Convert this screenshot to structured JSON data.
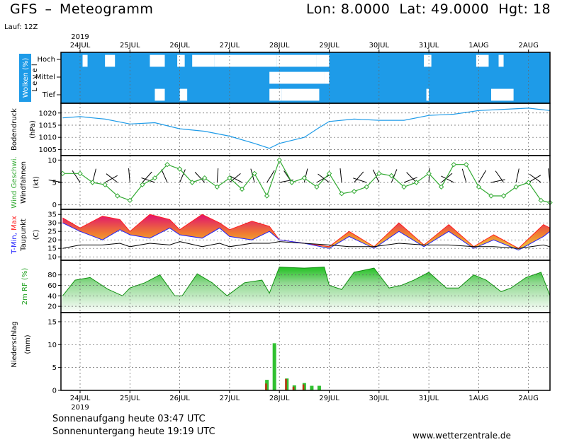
{
  "header": {
    "model": "GFS",
    "dash": "–",
    "product": "Meteogramm",
    "coords": "Lon: 8.0000  Lat: 49.0000  Hgt: 18",
    "run": "Lauf: 12Z"
  },
  "footer": {
    "sunrise": "Sonnenaufgang heute 03:47 UTC",
    "sunset": "Sonnenuntergang heute 19:19 UTC",
    "source": "www.wetterzentrale.de"
  },
  "time_axis": {
    "year": "2019",
    "days": [
      "24JUL",
      "25JUL",
      "26JUL",
      "27JUL",
      "28JUL",
      "29JUL",
      "30JUL",
      "31JUL",
      "1AUG",
      "2AUG"
    ],
    "range_days": [
      -0.35,
      9.5
    ]
  },
  "colors": {
    "cloud_blue": "#1e9be8",
    "pressure_line": "#1e9be8",
    "wind_green": "#33aa33",
    "tmax_red": "#ff2020",
    "tmin_blue": "#2020ff",
    "temp_fill_low": "#f0c020",
    "temp_fill_high": "#e02070",
    "rh_green": "#30c030",
    "rain_green": "#30c030",
    "rain_red": "#c03010"
  },
  "chart_data": [
    {
      "type": "heatmap",
      "panel": "clouds",
      "ylabel": "Wolken (%)",
      "ylabel2": "L e v e l",
      "levels": [
        "Hoch",
        "Mittel",
        "Tief"
      ],
      "note": "mostly fully cloudy (blue); white gaps = clear",
      "clear_intervals": {
        "Hoch": [
          [
            0.05,
            0.15
          ],
          [
            0.5,
            0.7
          ],
          [
            1.4,
            1.7
          ],
          [
            1.95,
            2.1
          ],
          [
            2.25,
            2.7
          ],
          [
            2.7,
            3.95
          ],
          [
            3.95,
            4.75
          ],
          [
            4.75,
            5.0
          ],
          [
            6.9,
            7.05
          ],
          [
            7.95,
            8.2
          ],
          [
            8.4,
            8.5
          ]
        ],
        "Mittel": [
          [
            3.8,
            4.0
          ],
          [
            4.0,
            4.9
          ],
          [
            4.9,
            5.0
          ]
        ],
        "Tief": [
          [
            1.5,
            1.7
          ],
          [
            2.0,
            2.15
          ],
          [
            3.8,
            4.05
          ],
          [
            4.05,
            4.8
          ],
          [
            6.95,
            7.0
          ],
          [
            8.25,
            8.7
          ]
        ]
      }
    },
    {
      "type": "line",
      "panel": "pressure",
      "ylabel": "Bodendruck",
      "unit": "(hPa)",
      "ylim": [
        1002.5,
        1024
      ],
      "yticks": [
        1005,
        1010,
        1015,
        1020
      ],
      "x": [
        -0.35,
        0,
        0.5,
        1,
        1.5,
        2,
        2.5,
        3,
        3.5,
        3.8,
        4,
        4.5,
        4.8,
        5,
        5.5,
        6,
        6.5,
        7,
        7.5,
        8,
        8.5,
        9,
        9.5
      ],
      "values": [
        1018,
        1018.5,
        1017.5,
        1015.5,
        1016,
        1013.5,
        1012.5,
        1010.5,
        1007.5,
        1005.5,
        1007.5,
        1010,
        1014,
        1016.5,
        1017.5,
        1017,
        1017,
        1019,
        1019.5,
        1021,
        1021.5,
        1022,
        1021
      ]
    },
    {
      "type": "line",
      "panel": "wind",
      "ylabel": "Wind Geschwi.",
      "ylabel2": "Windfahnen",
      "unit": "(kt)",
      "ylim": [
        -1,
        11
      ],
      "yticks": [
        0,
        5,
        10
      ],
      "x": [
        -0.35,
        0,
        0.25,
        0.5,
        0.75,
        1,
        1.25,
        1.5,
        1.75,
        2,
        2.25,
        2.5,
        2.75,
        3,
        3.25,
        3.5,
        3.75,
        4,
        4.25,
        4.5,
        4.75,
        5,
        5.25,
        5.5,
        5.75,
        6,
        6.25,
        6.5,
        6.75,
        7,
        7.25,
        7.5,
        7.75,
        8,
        8.25,
        8.5,
        8.75,
        9,
        9.25,
        9.5
      ],
      "values": [
        7,
        7,
        5,
        4.5,
        2,
        1,
        4.5,
        6,
        9,
        8,
        5,
        6,
        4,
        6,
        3.5,
        7,
        2,
        10,
        5,
        6,
        4,
        7,
        2.5,
        3,
        4,
        7,
        6.5,
        4,
        5,
        7,
        4,
        9,
        9,
        4,
        2,
        2,
        4,
        5,
        1,
        0.5
      ]
    },
    {
      "type": "area",
      "panel": "temperature",
      "ylabel_min": "T-Min,",
      "ylabel_max": "Max",
      "ylabel2": "Taupunkt",
      "unit": "(C)",
      "ylim": [
        8,
        38
      ],
      "yticks": [
        10,
        15,
        20,
        25,
        30,
        35
      ],
      "x": [
        -0.35,
        0,
        0.45,
        0.8,
        1.0,
        1.4,
        1.8,
        2.0,
        2.45,
        2.8,
        3.0,
        3.45,
        3.8,
        4.0,
        4.5,
        5.0,
        5.4,
        5.9,
        6.4,
        6.9,
        7.4,
        7.9,
        8.3,
        8.8,
        9.3,
        9.5
      ],
      "tmax": [
        33,
        27,
        34,
        26,
        25,
        35,
        27,
        26,
        35,
        27,
        26,
        31,
        25,
        20,
        18,
        16,
        25,
        16,
        30,
        17,
        29,
        16,
        23,
        15,
        29,
        27
      ],
      "tmin": [
        30,
        25,
        20,
        32,
        23,
        21,
        32,
        23,
        21,
        30,
        22,
        20,
        28,
        20,
        18,
        15,
        22,
        15,
        25,
        16,
        25,
        15,
        20,
        14,
        22,
        25
      ],
      "dewpoint": [
        15,
        17,
        17,
        18,
        16,
        18,
        17,
        19,
        16,
        18,
        16,
        18,
        18,
        19,
        18,
        17,
        16,
        16,
        18,
        17,
        17,
        16,
        16,
        15,
        17,
        16
      ]
    },
    {
      "type": "area",
      "panel": "relative_humidity",
      "ylabel": "2m RF (%)",
      "ylim": [
        8,
        108
      ],
      "yticks": [
        20,
        40,
        60,
        80
      ],
      "x": [
        -0.35,
        -0.1,
        0.2,
        0.55,
        0.85,
        1.0,
        1.3,
        1.6,
        1.9,
        2.05,
        2.35,
        2.65,
        2.95,
        3.3,
        3.65,
        3.8,
        4.0,
        4.5,
        4.9,
        5.0,
        5.25,
        5.5,
        5.9,
        6.2,
        6.45,
        6.7,
        7.0,
        7.35,
        7.6,
        7.9,
        8.15,
        8.45,
        8.65,
        8.95,
        9.25,
        9.5
      ],
      "values": [
        40,
        70,
        75,
        53,
        40,
        55,
        65,
        80,
        40,
        40,
        82,
        65,
        40,
        65,
        70,
        45,
        95,
        93,
        95,
        60,
        52,
        85,
        93,
        55,
        60,
        70,
        85,
        55,
        55,
        80,
        70,
        48,
        55,
        75,
        85,
        40
      ]
    },
    {
      "type": "bar",
      "panel": "precipitation",
      "ylabel": "Niederschlag",
      "unit": "(mm)",
      "ylim": [
        0,
        17
      ],
      "yticks": [
        0,
        5,
        10,
        15
      ],
      "x": [
        3.75,
        3.9,
        4.15,
        4.3,
        4.5,
        4.65,
        4.8
      ],
      "values": [
        2.3,
        10.3,
        2.6,
        1.1,
        1.6,
        1.0,
        1.0
      ],
      "red_values": [
        1.5,
        0,
        2.5,
        0.8,
        1.3,
        0,
        0
      ]
    }
  ]
}
